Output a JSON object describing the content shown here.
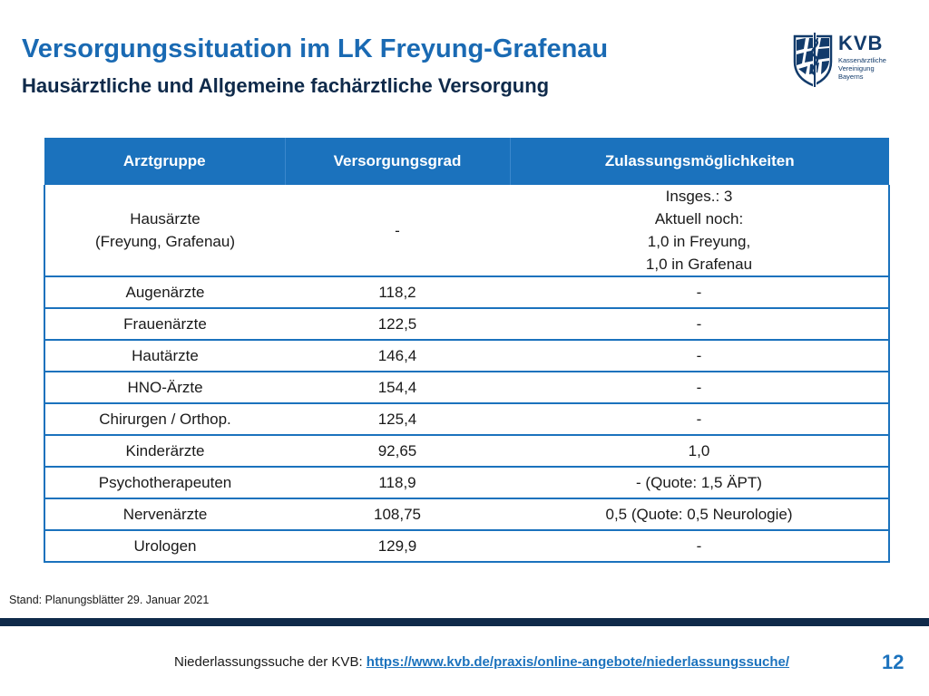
{
  "header": {
    "title": "Versorgungssituation im LK Freyung-Grafenau",
    "subtitle": "Hausärztliche und Allgemeine fachärztliche Versorgung"
  },
  "logo": {
    "abbr": "KVB",
    "line1": "Kassenärztliche",
    "line2": "Vereinigung",
    "line3": "Bayerns"
  },
  "table": {
    "headers": [
      "Arztgruppe",
      "Versorgungsgrad",
      "Zulassungsmöglichkeiten"
    ],
    "first_row": {
      "group": [
        "Hausärzte",
        "(Freyung, Grafenau)"
      ],
      "grade": "-",
      "options": [
        "Insges.: 3",
        "Aktuell noch:",
        "1,0 in Freyung,",
        "1,0 in Grafenau"
      ]
    },
    "rows": [
      {
        "group": "Augenärzte",
        "grade": "118,2",
        "options": "-"
      },
      {
        "group": "Frauenärzte",
        "grade": "122,5",
        "options": "-"
      },
      {
        "group": "Hautärzte",
        "grade": "146,4",
        "options": "-"
      },
      {
        "group": "HNO-Ärzte",
        "grade": "154,4",
        "options": "-"
      },
      {
        "group": "Chirurgen / Orthop.",
        "grade": "125,4",
        "options": "-"
      },
      {
        "group": "Kinderärzte",
        "grade": "92,65",
        "options": "1,0"
      },
      {
        "group": "Psychotherapeuten",
        "grade": "118,9",
        "options": "-  (Quote: 1,5 ÄPT)"
      },
      {
        "group": "Nervenärzte",
        "grade": "108,75",
        "options": "0,5 (Quote: 0,5 Neurologie)"
      },
      {
        "group": "Urologen",
        "grade": "129,9",
        "options": "-"
      }
    ]
  },
  "stand": "Stand: Planungsblätter 29. Januar 2021",
  "footer": {
    "prefix": "Niederlassungssuche der KVB: ",
    "link": "https://www.kvb.de/praxis/online-angebote/niederlassungssuche/",
    "page": "12"
  },
  "colors": {
    "accent": "#1b72bd",
    "title": "#1a6ab3",
    "dark_navy": "#0f2a4a"
  }
}
